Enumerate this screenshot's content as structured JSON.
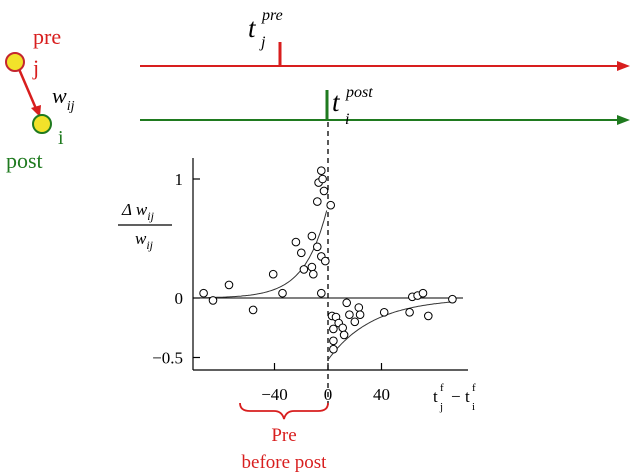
{
  "colors": {
    "pre": "#d81e1e",
    "post": "#1f7a1f",
    "neuron_fill": "#f2e22a",
    "neuron_stroke": "#c4262e",
    "ink": "#000000"
  },
  "neurons": {
    "pre_label": "pre",
    "pre_index": "j",
    "weight_w": "w",
    "weight_sub": "ij",
    "post_index": "i",
    "post_label": "post"
  },
  "spikes": {
    "pre_t": "t",
    "pre_sub": "j",
    "pre_sup": "pre",
    "post_t": "t",
    "post_sub": "i",
    "post_sup": "post"
  },
  "annotation": {
    "line1": "Pre",
    "line2": "before post"
  },
  "chart_data": {
    "type": "scatter",
    "ylabel_num": "Δ w",
    "ylabel_num_sub": "ij",
    "ylabel_den": "w",
    "ylabel_den_sub": "ij",
    "xlabel_t1": "t",
    "xlabel_t1_sup": "f",
    "xlabel_t1_sub": "j",
    "xlabel_minus": "−",
    "xlabel_t2": "t",
    "xlabel_t2_sup": "f",
    "xlabel_t2_sub": "i",
    "xlim": [
      -95,
      95
    ],
    "ylim": [
      -0.6,
      1.15
    ],
    "xticks": [
      {
        "v": -40,
        "label": "−40"
      },
      {
        "v": 0,
        "label": "0"
      },
      {
        "v": 40,
        "label": "40"
      }
    ],
    "yticks": [
      {
        "v": 1,
        "label": "1"
      },
      {
        "v": 0,
        "label": "0"
      },
      {
        "v": -0.5,
        "label": "−0.5"
      }
    ],
    "fit": {
      "a_plus": 0.78,
      "tau_plus": 16.8,
      "a_minus": -0.52,
      "tau_minus": 33.7
    },
    "points": [
      [
        -93,
        0.04
      ],
      [
        -86,
        -0.02
      ],
      [
        -74,
        0.11
      ],
      [
        -56,
        -0.1
      ],
      [
        -41,
        0.2
      ],
      [
        -34,
        0.04
      ],
      [
        -24,
        0.47
      ],
      [
        -20,
        0.38
      ],
      [
        -18,
        0.24
      ],
      [
        -12,
        0.26
      ],
      [
        -12,
        0.52
      ],
      [
        -11,
        0.2
      ],
      [
        -8,
        0.43
      ],
      [
        -8,
        0.81
      ],
      [
        -7,
        0.97
      ],
      [
        -5,
        0.04
      ],
      [
        -5,
        0.35
      ],
      [
        -5,
        1.07
      ],
      [
        -4,
        1.0
      ],
      [
        -3,
        0.9
      ],
      [
        -2,
        0.31
      ],
      [
        2,
        0.78
      ],
      [
        3,
        -0.15
      ],
      [
        4,
        -0.26
      ],
      [
        4,
        -0.36
      ],
      [
        4,
        -0.43
      ],
      [
        6,
        -0.16
      ],
      [
        8,
        -0.21
      ],
      [
        11,
        -0.25
      ],
      [
        12,
        -0.31
      ],
      [
        14,
        -0.04
      ],
      [
        16,
        -0.14
      ],
      [
        20,
        -0.2
      ],
      [
        23,
        -0.08
      ],
      [
        24,
        -0.14
      ],
      [
        42,
        -0.12
      ],
      [
        61,
        -0.12
      ],
      [
        63,
        0.01
      ],
      [
        67,
        0.02
      ],
      [
        71,
        0.04
      ],
      [
        75,
        -0.15
      ],
      [
        93,
        -0.01
      ]
    ]
  }
}
